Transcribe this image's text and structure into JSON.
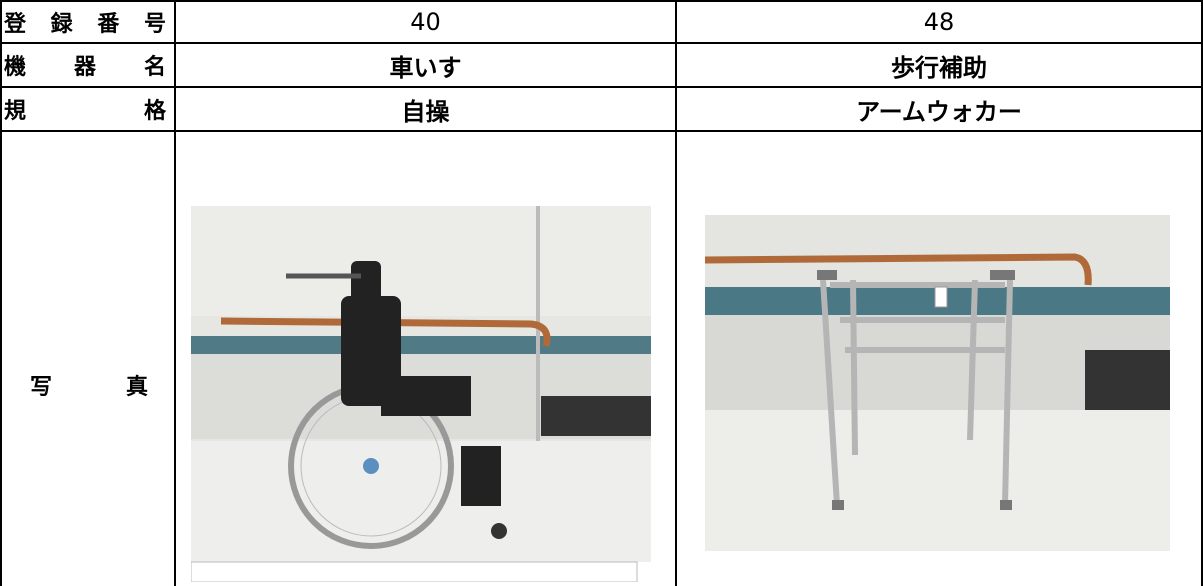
{
  "table": {
    "rows": [
      [
        "登録番号",
        "40",
        "48"
      ],
      [
        "機器名",
        "車いす",
        "歩行補助"
      ],
      [
        "規格",
        "自操",
        "アームウォカー"
      ],
      [
        "写真"
      ]
    ]
  }
}
